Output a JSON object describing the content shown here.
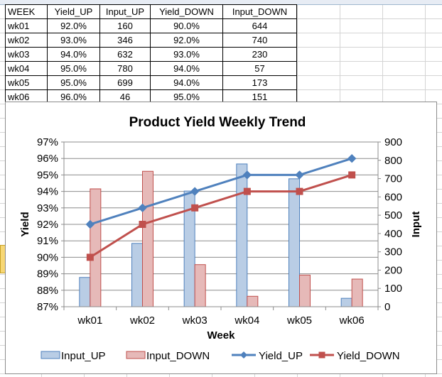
{
  "table": {
    "headers": [
      "WEEK",
      "Yield_UP",
      "Input_UP",
      "Yield_DOWN",
      "Input_DOWN"
    ],
    "rows": [
      [
        "wk01",
        "92.0%",
        "160",
        "90.0%",
        "644"
      ],
      [
        "wk02",
        "93.0%",
        "346",
        "92.0%",
        "740"
      ],
      [
        "wk03",
        "94.0%",
        "632",
        "93.0%",
        "230"
      ],
      [
        "wk04",
        "95.0%",
        "780",
        "94.0%",
        "57"
      ],
      [
        "wk05",
        "95.0%",
        "699",
        "94.0%",
        "173"
      ],
      [
        "wk06",
        "96.0%",
        "46",
        "95.0%",
        "151"
      ]
    ]
  },
  "chart_data": {
    "type": "bar",
    "title": "Product Yield Weekly Trend",
    "xlabel": "Week",
    "ylabel": "Yield",
    "y2label": "Input",
    "categories": [
      "wk01",
      "wk02",
      "wk03",
      "wk04",
      "wk05",
      "wk06"
    ],
    "ylim": [
      87,
      97
    ],
    "y2lim": [
      0,
      900
    ],
    "yticks": [
      "87%",
      "88%",
      "89%",
      "90%",
      "91%",
      "92%",
      "93%",
      "94%",
      "95%",
      "96%",
      "97%"
    ],
    "y2ticks": [
      "0",
      "100",
      "200",
      "300",
      "400",
      "500",
      "600",
      "700",
      "800",
      "900"
    ],
    "grid": true,
    "legend_position": "bottom",
    "series": [
      {
        "name": "Input_UP",
        "kind": "bar",
        "axis": "secondary",
        "color": "#b9cde5",
        "edge": "#4f81bd",
        "values": [
          160,
          346,
          632,
          780,
          699,
          46
        ]
      },
      {
        "name": "Input_DOWN",
        "kind": "bar",
        "axis": "secondary",
        "color": "#e6b9b8",
        "edge": "#c0504d",
        "values": [
          644,
          740,
          230,
          57,
          173,
          151
        ]
      },
      {
        "name": "Yield_UP",
        "kind": "line",
        "marker": "diamond",
        "axis": "primary",
        "color": "#4f81bd",
        "values": [
          92,
          93,
          94,
          95,
          95,
          96
        ]
      },
      {
        "name": "Yield_DOWN",
        "kind": "line",
        "marker": "square",
        "axis": "primary",
        "color": "#c0504d",
        "values": [
          90,
          92,
          93,
          94,
          94,
          95
        ]
      }
    ]
  }
}
